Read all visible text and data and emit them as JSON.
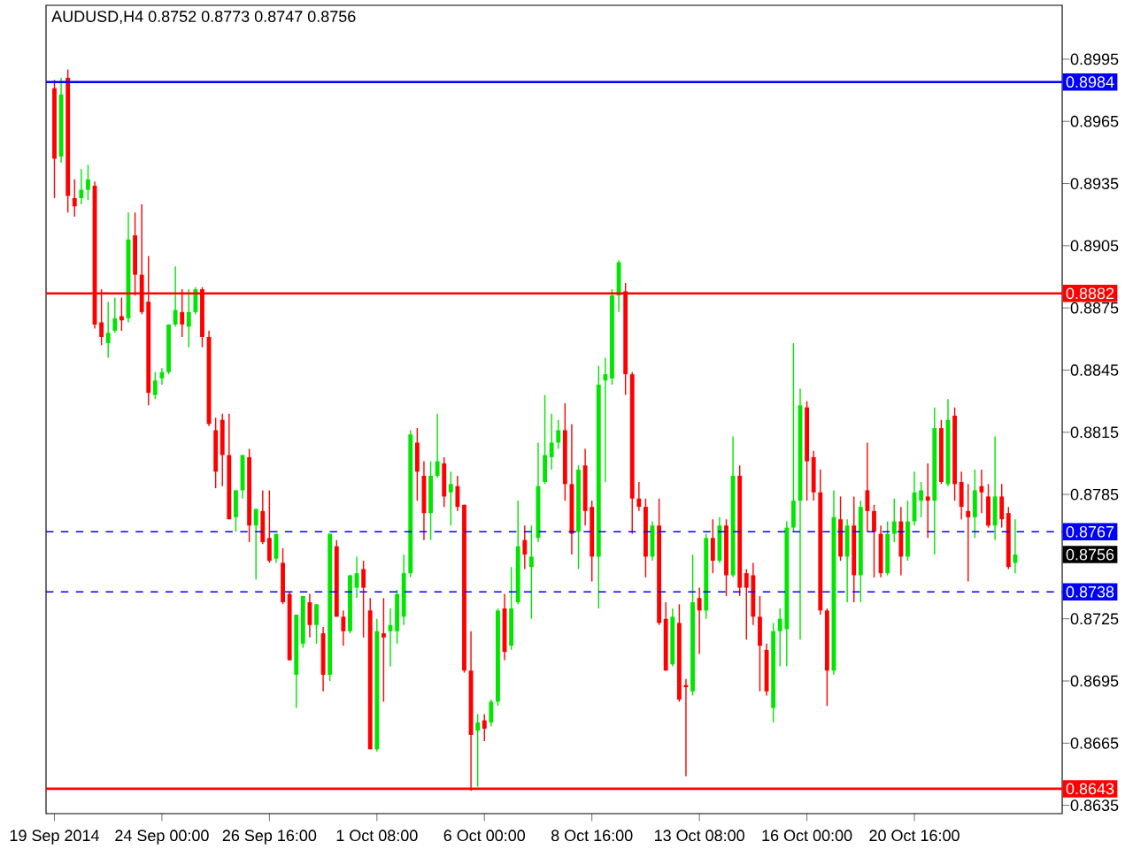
{
  "chart_data": {
    "type": "candlestick",
    "title": "AUDUSD,H4  0.8752 0.8773 0.8747 0.8756",
    "categories": [
      "19 Sep 2014",
      null,
      null,
      null,
      null,
      null,
      null,
      null,
      null,
      null,
      null,
      null,
      null,
      null,
      null,
      null,
      "24 Sep 00:00",
      null,
      null,
      null,
      null,
      null,
      null,
      null,
      null,
      null,
      null,
      null,
      null,
      null,
      null,
      null,
      "26 Sep 16:00",
      null,
      null,
      null,
      null,
      null,
      null,
      null,
      null,
      null,
      null,
      null,
      null,
      null,
      null,
      null,
      "1 Oct 08:00",
      null,
      null,
      null,
      null,
      null,
      null,
      null,
      null,
      null,
      null,
      null,
      null,
      null,
      null,
      null,
      "6 Oct 00:00",
      null,
      null,
      null,
      null,
      null,
      null,
      null,
      null,
      null,
      null,
      null,
      null,
      null,
      null,
      null,
      "8 Oct 16:00",
      null,
      null,
      null,
      null,
      null,
      null,
      null,
      null,
      null,
      null,
      null,
      null,
      null,
      null,
      null,
      "13 Oct 08:00",
      null,
      null,
      null,
      null,
      null,
      null,
      null,
      null,
      null,
      null,
      null,
      null,
      null,
      null,
      null,
      "16 Oct 00:00",
      null,
      null,
      null,
      null,
      null,
      null,
      null,
      null,
      null,
      null,
      null,
      null,
      null,
      null,
      null,
      "20 Oct 16:00",
      null,
      null,
      null,
      null,
      null,
      null,
      null,
      null,
      null,
      null,
      null,
      null,
      null,
      null,
      null
    ],
    "ohlc": [
      [
        0.8981,
        0.8985,
        0.8928,
        0.8947
      ],
      [
        0.8948,
        0.8986,
        0.8945,
        0.8978
      ],
      [
        0.8986,
        0.899,
        0.8921,
        0.8929
      ],
      [
        0.8928,
        0.8937,
        0.8919,
        0.8924
      ],
      [
        0.8928,
        0.8942,
        0.8925,
        0.8932
      ],
      [
        0.8932,
        0.8944,
        0.8927,
        0.8937
      ],
      [
        0.8934,
        0.8936,
        0.8865,
        0.8867
      ],
      [
        0.8868,
        0.8884,
        0.8857,
        0.8861
      ],
      [
        0.8858,
        0.8878,
        0.8851,
        0.8863
      ],
      [
        0.8864,
        0.888,
        0.8863,
        0.887
      ],
      [
        0.8871,
        0.888,
        0.8864,
        0.8869
      ],
      [
        0.887,
        0.8921,
        0.8868,
        0.8908
      ],
      [
        0.891,
        0.8921,
        0.8881,
        0.8891
      ],
      [
        0.8891,
        0.8925,
        0.8872,
        0.8873
      ],
      [
        0.8878,
        0.89,
        0.8828,
        0.8834
      ],
      [
        0.8833,
        0.8844,
        0.8831,
        0.884
      ],
      [
        0.8841,
        0.8846,
        0.8838,
        0.8844
      ],
      [
        0.8844,
        0.8867,
        0.8843,
        0.8867
      ],
      [
        0.8867,
        0.8895,
        0.8866,
        0.8874
      ],
      [
        0.8873,
        0.8884,
        0.8861,
        0.8867
      ],
      [
        0.8866,
        0.8884,
        0.8856,
        0.8873
      ],
      [
        0.8873,
        0.8885,
        0.8872,
        0.8884
      ],
      [
        0.8884,
        0.8885,
        0.8856,
        0.8861
      ],
      [
        0.8861,
        0.8864,
        0.8818,
        0.8819
      ],
      [
        0.8816,
        0.8822,
        0.8788,
        0.8796
      ],
      [
        0.8821,
        0.8824,
        0.8789,
        0.8804
      ],
      [
        0.8804,
        0.8824,
        0.8773,
        0.8773
      ],
      [
        0.8774,
        0.8787,
        0.8767,
        0.8787
      ],
      [
        0.8787,
        0.8804,
        0.8783,
        0.8804
      ],
      [
        0.8803,
        0.8807,
        0.8762,
        0.877
      ],
      [
        0.877,
        0.8778,
        0.8744,
        0.8778
      ],
      [
        0.8777,
        0.8787,
        0.8761,
        0.8762
      ],
      [
        0.8764,
        0.8787,
        0.8752,
        0.8753
      ],
      [
        0.8754,
        0.8766,
        0.8752,
        0.8766
      ],
      [
        0.8752,
        0.8759,
        0.8732,
        0.8733
      ],
      [
        0.8737,
        0.8738,
        0.8705,
        0.8705
      ],
      [
        0.8698,
        0.8727,
        0.8682,
        0.8727
      ],
      [
        0.8713,
        0.8736,
        0.8711,
        0.8736
      ],
      [
        0.8733,
        0.8737,
        0.8716,
        0.8722
      ],
      [
        0.8722,
        0.8732,
        0.8713,
        0.8732
      ],
      [
        0.8718,
        0.8721,
        0.869,
        0.8698
      ],
      [
        0.8698,
        0.8766,
        0.8695,
        0.8766
      ],
      [
        0.876,
        0.8763,
        0.8726,
        0.8726
      ],
      [
        0.8726,
        0.8729,
        0.8712,
        0.8719
      ],
      [
        0.8719,
        0.8746,
        0.8718,
        0.8746
      ],
      [
        0.874,
        0.8755,
        0.8735,
        0.8747
      ],
      [
        0.8749,
        0.8753,
        0.8716,
        0.874
      ],
      [
        0.8729,
        0.8735,
        0.8662,
        0.8662
      ],
      [
        0.8662,
        0.8725,
        0.8661,
        0.8719
      ],
      [
        0.8718,
        0.8735,
        0.8685,
        0.8716
      ],
      [
        0.8719,
        0.873,
        0.8702,
        0.8722
      ],
      [
        0.8719,
        0.8739,
        0.8713,
        0.8737
      ],
      [
        0.8726,
        0.8756,
        0.8722,
        0.8747
      ],
      [
        0.8747,
        0.8816,
        0.8745,
        0.8814
      ],
      [
        0.881,
        0.8817,
        0.8782,
        0.8796
      ],
      [
        0.8794,
        0.8801,
        0.8763,
        0.8776
      ],
      [
        0.8776,
        0.8801,
        0.8763,
        0.8794
      ],
      [
        0.8794,
        0.8824,
        0.8793,
        0.8801
      ],
      [
        0.88,
        0.8803,
        0.8779,
        0.8784
      ],
      [
        0.8786,
        0.8796,
        0.877,
        0.879
      ],
      [
        0.8789,
        0.8794,
        0.8777,
        0.8779
      ],
      [
        0.878,
        0.878,
        0.8699,
        0.87
      ],
      [
        0.87,
        0.8719,
        0.8642,
        0.8669
      ],
      [
        0.8671,
        0.8679,
        0.8644,
        0.8675
      ],
      [
        0.8676,
        0.8679,
        0.8666,
        0.8672
      ],
      [
        0.8675,
        0.8686,
        0.8673,
        0.8685
      ],
      [
        0.8685,
        0.873,
        0.8683,
        0.8729
      ],
      [
        0.873,
        0.8737,
        0.8705,
        0.8709
      ],
      [
        0.8712,
        0.875,
        0.871,
        0.873
      ],
      [
        0.8733,
        0.8782,
        0.8732,
        0.876
      ],
      [
        0.8763,
        0.877,
        0.8749,
        0.8756
      ],
      [
        0.875,
        0.877,
        0.8725,
        0.8755
      ],
      [
        0.8764,
        0.881,
        0.8762,
        0.8789
      ],
      [
        0.8791,
        0.8833,
        0.879,
        0.8804
      ],
      [
        0.8803,
        0.8824,
        0.8797,
        0.881
      ],
      [
        0.881,
        0.8821,
        0.8807,
        0.8816
      ],
      [
        0.8816,
        0.8829,
        0.8782,
        0.879
      ],
      [
        0.879,
        0.8819,
        0.8756,
        0.8766
      ],
      [
        0.8767,
        0.8799,
        0.8749,
        0.8797
      ],
      [
        0.8799,
        0.8807,
        0.877,
        0.8777
      ],
      [
        0.8779,
        0.8782,
        0.8743,
        0.8755
      ],
      [
        0.8755,
        0.8847,
        0.873,
        0.8838
      ],
      [
        0.884,
        0.8851,
        0.8791,
        0.8843
      ],
      [
        0.8841,
        0.8884,
        0.8838,
        0.8881
      ],
      [
        0.8881,
        0.8898,
        0.8873,
        0.8897
      ],
      [
        0.8883,
        0.8887,
        0.8833,
        0.8843
      ],
      [
        0.8843,
        0.8844,
        0.8766,
        0.8783
      ],
      [
        0.8783,
        0.8791,
        0.8777,
        0.8779
      ],
      [
        0.8779,
        0.8783,
        0.8745,
        0.8755
      ],
      [
        0.8755,
        0.8772,
        0.8753,
        0.877
      ],
      [
        0.877,
        0.8783,
        0.8722,
        0.8723
      ],
      [
        0.8725,
        0.8733,
        0.87,
        0.87
      ],
      [
        0.8703,
        0.873,
        0.8702,
        0.8726
      ],
      [
        0.8723,
        0.8732,
        0.8685,
        0.8686
      ],
      [
        0.8693,
        0.8696,
        0.8649,
        0.8692
      ],
      [
        0.869,
        0.8756,
        0.8688,
        0.8733
      ],
      [
        0.8735,
        0.874,
        0.8708,
        0.8729
      ],
      [
        0.8729,
        0.8766,
        0.8725,
        0.8764
      ],
      [
        0.8764,
        0.8773,
        0.8747,
        0.8753
      ],
      [
        0.8753,
        0.8774,
        0.8752,
        0.877
      ],
      [
        0.877,
        0.8773,
        0.8736,
        0.8746
      ],
      [
        0.8746,
        0.8813,
        0.8745,
        0.8794
      ],
      [
        0.8794,
        0.8799,
        0.8736,
        0.874
      ],
      [
        0.8747,
        0.8749,
        0.8715,
        0.874
      ],
      [
        0.8746,
        0.8752,
        0.8722,
        0.8726
      ],
      [
        0.8726,
        0.8736,
        0.869,
        0.8712
      ],
      [
        0.871,
        0.8713,
        0.8688,
        0.869
      ],
      [
        0.8682,
        0.8723,
        0.8675,
        0.8719
      ],
      [
        0.8719,
        0.873,
        0.8702,
        0.8725
      ],
      [
        0.872,
        0.8772,
        0.8702,
        0.8769
      ],
      [
        0.8769,
        0.8858,
        0.8767,
        0.8782
      ],
      [
        0.8782,
        0.8836,
        0.8715,
        0.8828
      ],
      [
        0.8827,
        0.883,
        0.8782,
        0.8801
      ],
      [
        0.8803,
        0.8806,
        0.8782,
        0.8786
      ],
      [
        0.8786,
        0.8797,
        0.8727,
        0.8729
      ],
      [
        0.8729,
        0.873,
        0.8683,
        0.87
      ],
      [
        0.87,
        0.8787,
        0.8698,
        0.8774
      ],
      [
        0.8773,
        0.8784,
        0.8753,
        0.8755
      ],
      [
        0.8755,
        0.8773,
        0.8733,
        0.877
      ],
      [
        0.877,
        0.8784,
        0.8733,
        0.8746
      ],
      [
        0.8746,
        0.8782,
        0.8733,
        0.8779
      ],
      [
        0.8787,
        0.881,
        0.8767,
        0.8777
      ],
      [
        0.8777,
        0.878,
        0.8745,
        0.8767
      ],
      [
        0.8766,
        0.877,
        0.8745,
        0.8747
      ],
      [
        0.8747,
        0.8772,
        0.8746,
        0.8766
      ],
      [
        0.8766,
        0.8783,
        0.8762,
        0.8772
      ],
      [
        0.8772,
        0.8779,
        0.8746,
        0.8755
      ],
      [
        0.8755,
        0.8782,
        0.8753,
        0.8772
      ],
      [
        0.8772,
        0.8796,
        0.877,
        0.8786
      ],
      [
        0.8782,
        0.8791,
        0.8774,
        0.8787
      ],
      [
        0.8784,
        0.88,
        0.8764,
        0.8782
      ],
      [
        0.8782,
        0.8827,
        0.8756,
        0.8817
      ],
      [
        0.8817,
        0.8821,
        0.879,
        0.8791
      ],
      [
        0.879,
        0.8831,
        0.8789,
        0.8821
      ],
      [
        0.8823,
        0.8827,
        0.8782,
        0.879
      ],
      [
        0.8791,
        0.8796,
        0.8773,
        0.8779
      ],
      [
        0.8777,
        0.879,
        0.8743,
        0.8774
      ],
      [
        0.8774,
        0.8797,
        0.8764,
        0.8787
      ],
      [
        0.8789,
        0.8797,
        0.8776,
        0.8786
      ],
      [
        0.8784,
        0.879,
        0.8769,
        0.877
      ],
      [
        0.877,
        0.8813,
        0.8763,
        0.8784
      ],
      [
        0.8784,
        0.879,
        0.8769,
        0.8773
      ],
      [
        0.8776,
        0.8779,
        0.8749,
        0.875
      ],
      [
        0.8752,
        0.8773,
        0.8747,
        0.8756
      ]
    ],
    "ylim": [
      0.8631,
      0.9021
    ],
    "yticks": [
      0.8635,
      0.8665,
      0.8695,
      0.8725,
      0.8785,
      0.8815,
      0.8845,
      0.8875,
      0.8905,
      0.8935,
      0.8965,
      0.8995
    ],
    "ref_lines": [
      {
        "axis": "y",
        "value": 0.8984,
        "label": "0.8984",
        "color": "#0000ff"
      },
      {
        "axis": "y",
        "value": 0.8882,
        "label": "0.8882",
        "color": "#ff0000"
      },
      {
        "axis": "y",
        "value": 0.8767,
        "label": "0.8767",
        "color": "#0000ff",
        "line_style": "dashed"
      },
      {
        "axis": "y",
        "value": 0.8738,
        "label": "0.8738",
        "color": "#0000ff",
        "line_style": "dashed"
      },
      {
        "axis": "y",
        "value": 0.8643,
        "label": "0.8643",
        "color": "#ff0000"
      }
    ],
    "annotations": [
      "0.8756"
    ]
  }
}
